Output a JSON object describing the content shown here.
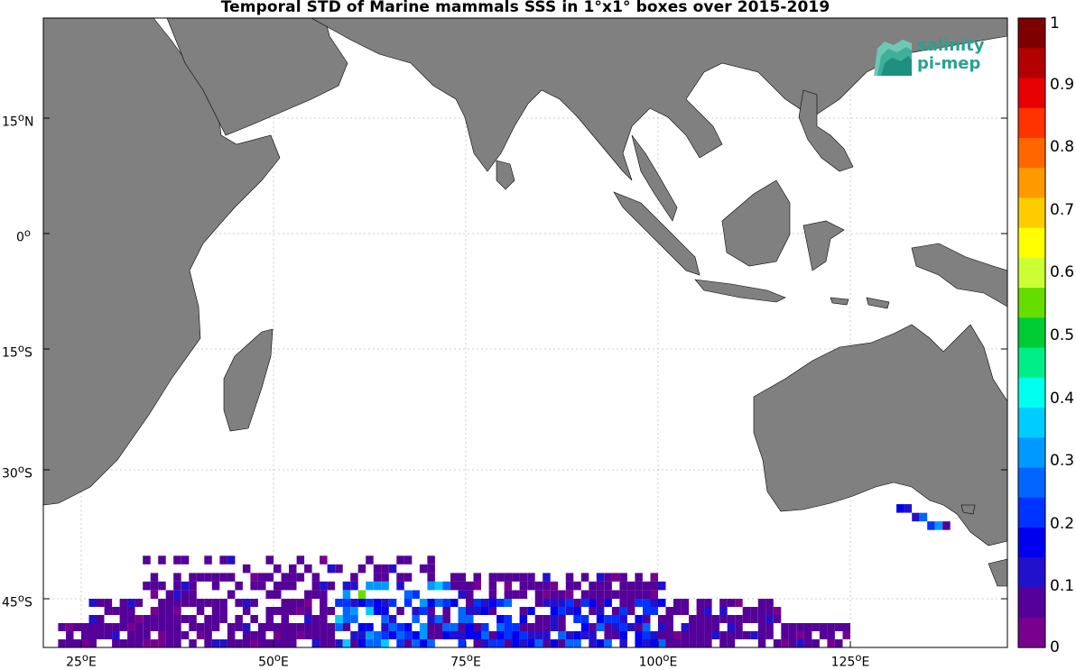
{
  "title": "Temporal STD of Marine mammals SSS in 1°x1° boxes over 2015-2019",
  "logo": {
    "line1": "salinity",
    "line2": "pi-mep",
    "icon": "salinity-waves-logo-icon",
    "color": "#2aa18f"
  },
  "lat_ticks": [
    {
      "deg": "15",
      "hemi": "N"
    },
    {
      "deg": "0",
      "hemi": ""
    },
    {
      "deg": "15",
      "hemi": "S"
    },
    {
      "deg": "30",
      "hemi": "S"
    },
    {
      "deg": "45",
      "hemi": "S"
    }
  ],
  "lon_ticks": [
    {
      "deg": "25",
      "hemi": "E"
    },
    {
      "deg": "50",
      "hemi": "E"
    },
    {
      "deg": "75",
      "hemi": "E"
    },
    {
      "deg": "100",
      "hemi": "E"
    },
    {
      "deg": "125",
      "hemi": "E"
    }
  ],
  "colorbar": {
    "labels": [
      "1",
      "0.9",
      "0.8",
      "0.7",
      "0.6",
      "0.5",
      "0.4",
      "0.3",
      "0.2",
      "0.1",
      "0"
    ],
    "colors": [
      "#7f0000",
      "#b30000",
      "#e60000",
      "#ff3300",
      "#ff6600",
      "#ff9900",
      "#ffcc00",
      "#ffff00",
      "#ccff33",
      "#66dd00",
      "#00cc33",
      "#00ee88",
      "#00ffee",
      "#00ccff",
      "#0099ff",
      "#0066ff",
      "#0033ff",
      "#0000ee",
      "#2211cc",
      "#550099",
      "#77008f"
    ]
  },
  "land_color": "#808080",
  "chart_data": {
    "type": "heatmap",
    "title": "Temporal STD of Marine mammals SSS in 1°x1° boxes over 2015-2019",
    "x_range_lon": [
      20,
      145
    ],
    "y_range_lat": [
      -51,
      30
    ],
    "clim": [
      0,
      1
    ],
    "colormap": "jet",
    "grid": true,
    "description_of_cells": "1°x1° boxes mostly 0–0.1 (purple) along 40°S–50°S from 22°E to 125°E, with higher values 0.2–0.5 near 60°E–70°E and a few 0.1–0.3 boxes off southern Australia (~130°E–137°E, 35°S–37°S).",
    "cells": []
  }
}
